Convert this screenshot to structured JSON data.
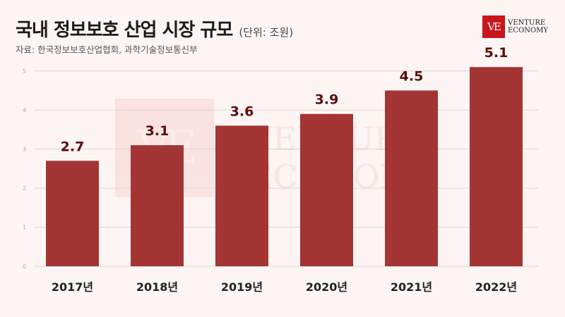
{
  "header": {
    "title": "국내 정보보호 산업 시장 규모",
    "unit": "(단위: 조원)",
    "source": "자료: 한국정보보호산업협회, 과학기술정보통신부"
  },
  "logo": {
    "mark": "VE",
    "line1": "VENTURE",
    "line2": "ECONOMY"
  },
  "colors": {
    "bar": "#a33535",
    "grid": "#dcd3d2",
    "background": "#fdf5f4",
    "label": "#5a0d0d"
  },
  "chart_data": {
    "type": "bar",
    "categories": [
      "2017년",
      "2018년",
      "2019년",
      "2020년",
      "2021년",
      "2022년"
    ],
    "values": [
      2.7,
      3.1,
      3.6,
      3.9,
      4.5,
      5.1
    ],
    "value_labels": [
      "2.7",
      "3.1",
      "3.6",
      "3.9",
      "4.5",
      "5.1"
    ],
    "title": "국내 정보보호 산업 시장 규모",
    "xlabel": "",
    "ylabel": "",
    "ylim": [
      0,
      5.5
    ],
    "yticks": [
      0,
      1,
      2,
      3,
      4,
      5
    ],
    "grid": true
  }
}
